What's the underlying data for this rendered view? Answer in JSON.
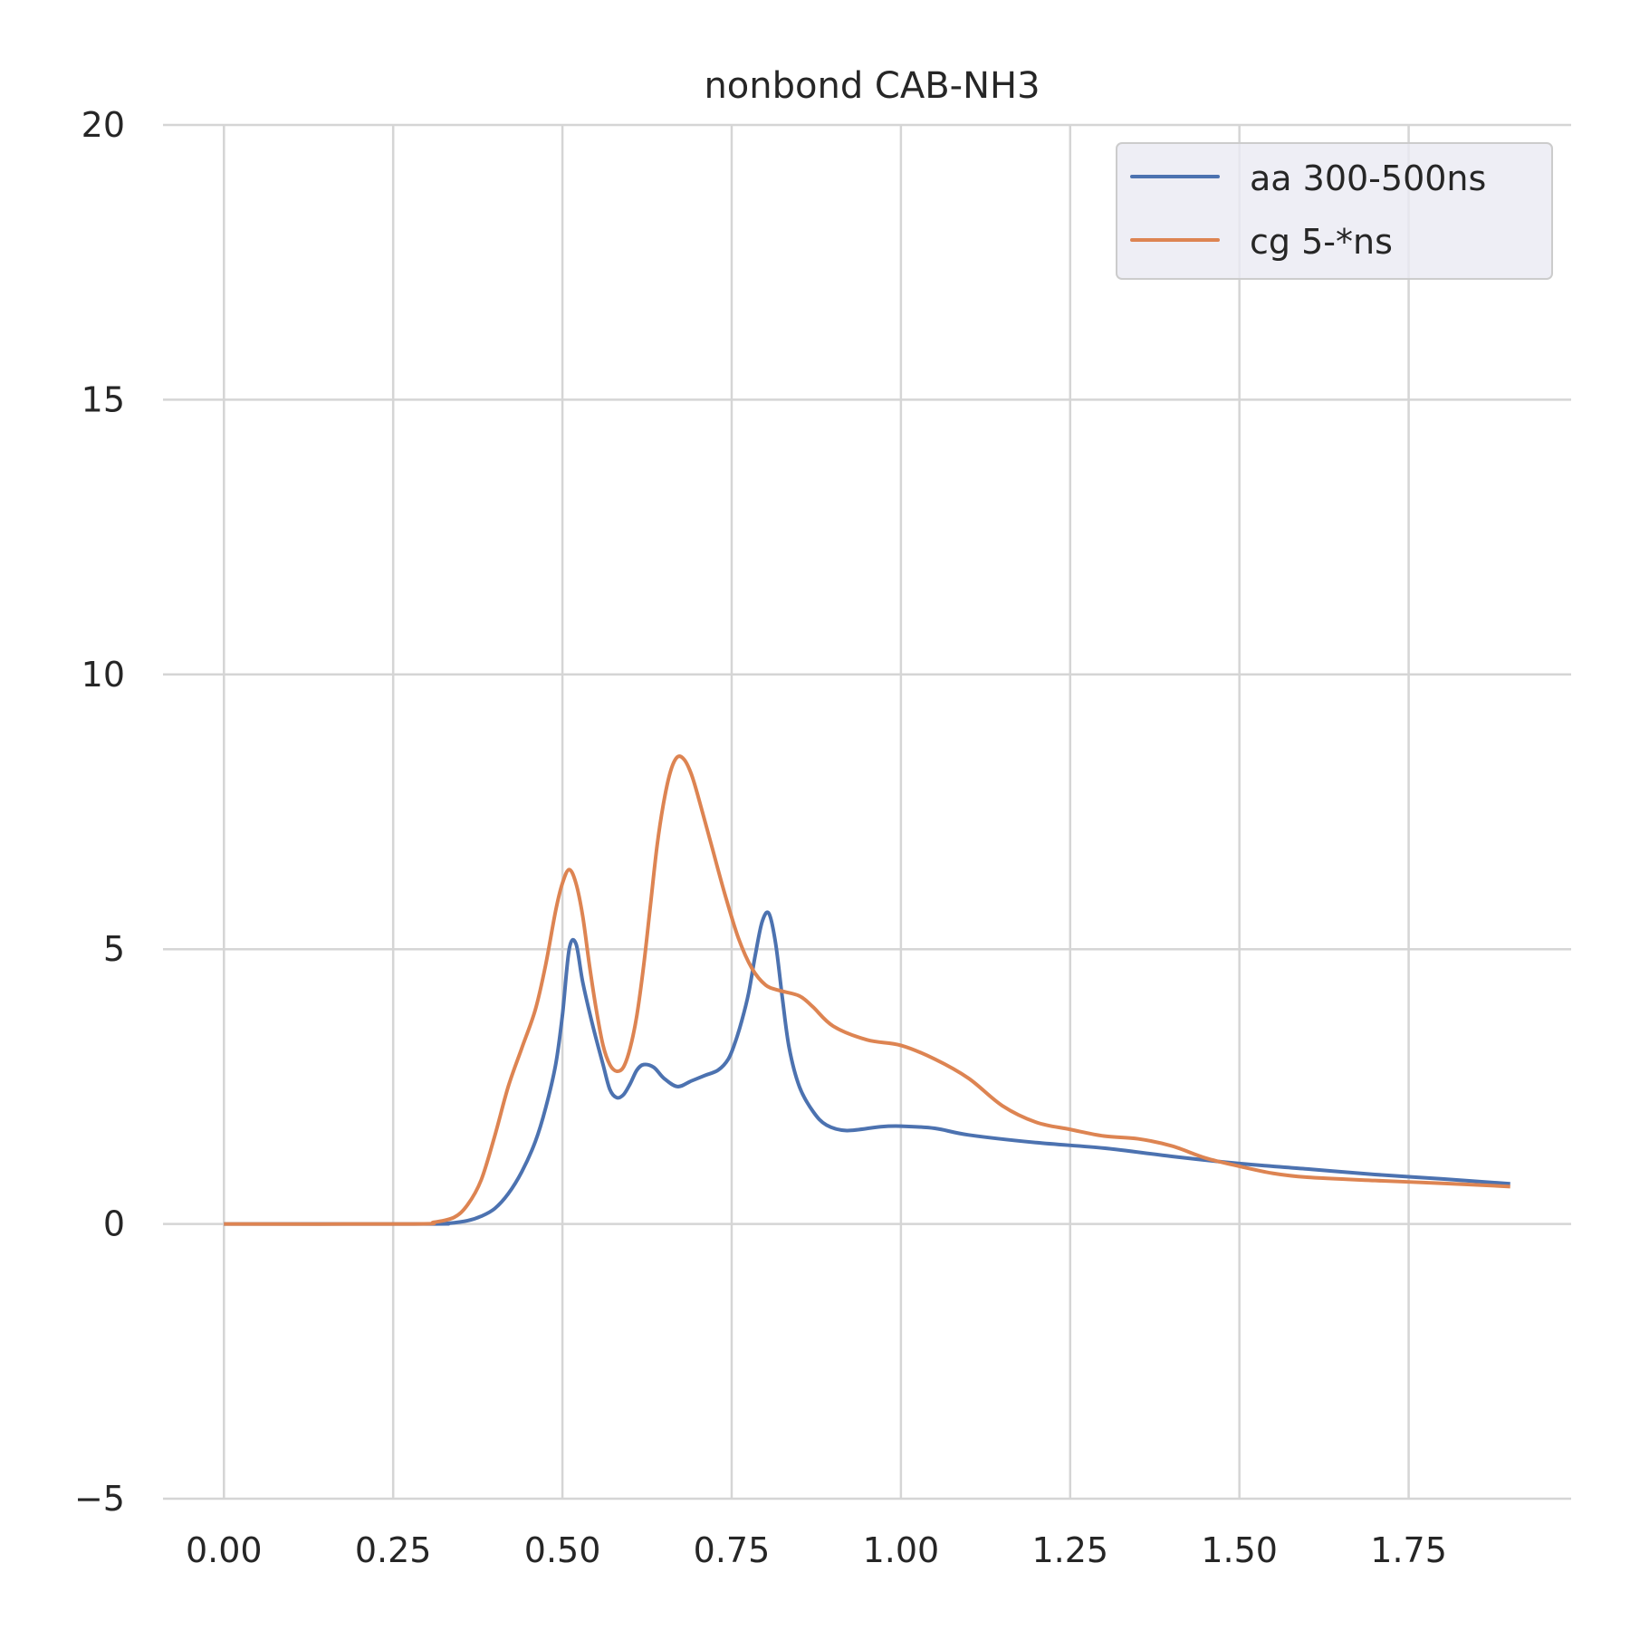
{
  "chart_data": {
    "type": "line",
    "title": "nonbond CAB-NH3",
    "xlabel": "",
    "ylabel": "",
    "xlim": [
      -0.09,
      1.99
    ],
    "ylim": [
      -5,
      20
    ],
    "xticks": [
      0.0,
      0.25,
      0.5,
      0.75,
      1.0,
      1.25,
      1.5,
      1.75
    ],
    "xtick_labels": [
      "0.00",
      "0.25",
      "0.50",
      "0.75",
      "1.00",
      "1.25",
      "1.50",
      "1.75"
    ],
    "yticks": [
      -5,
      0,
      5,
      10,
      15,
      20
    ],
    "ytick_labels": [
      "−5",
      "0",
      "5",
      "10",
      "15",
      "20"
    ],
    "grid": true,
    "legend_position": "top-right",
    "series": [
      {
        "name": "aa 300-500ns",
        "color": "#4c72b0",
        "points": [
          [
            0.0,
            0.0
          ],
          [
            0.3,
            0.0
          ],
          [
            0.33,
            0.01
          ],
          [
            0.36,
            0.06
          ],
          [
            0.38,
            0.14
          ],
          [
            0.4,
            0.28
          ],
          [
            0.42,
            0.55
          ],
          [
            0.44,
            0.95
          ],
          [
            0.46,
            1.5
          ],
          [
            0.475,
            2.1
          ],
          [
            0.49,
            2.9
          ],
          [
            0.5,
            3.8
          ],
          [
            0.51,
            5.0
          ],
          [
            0.52,
            5.1
          ],
          [
            0.53,
            4.4
          ],
          [
            0.545,
            3.6
          ],
          [
            0.56,
            2.9
          ],
          [
            0.57,
            2.45
          ],
          [
            0.58,
            2.3
          ],
          [
            0.59,
            2.35
          ],
          [
            0.6,
            2.55
          ],
          [
            0.61,
            2.8
          ],
          [
            0.62,
            2.9
          ],
          [
            0.635,
            2.85
          ],
          [
            0.65,
            2.65
          ],
          [
            0.67,
            2.5
          ],
          [
            0.69,
            2.6
          ],
          [
            0.71,
            2.7
          ],
          [
            0.73,
            2.8
          ],
          [
            0.745,
            3.0
          ],
          [
            0.755,
            3.3
          ],
          [
            0.765,
            3.7
          ],
          [
            0.775,
            4.2
          ],
          [
            0.785,
            4.9
          ],
          [
            0.795,
            5.5
          ],
          [
            0.805,
            5.65
          ],
          [
            0.815,
            5.1
          ],
          [
            0.825,
            4.1
          ],
          [
            0.835,
            3.2
          ],
          [
            0.85,
            2.5
          ],
          [
            0.87,
            2.05
          ],
          [
            0.89,
            1.8
          ],
          [
            0.92,
            1.7
          ],
          [
            0.97,
            1.77
          ],
          [
            1.0,
            1.78
          ],
          [
            1.05,
            1.74
          ],
          [
            1.1,
            1.62
          ],
          [
            1.2,
            1.48
          ],
          [
            1.3,
            1.38
          ],
          [
            1.4,
            1.23
          ],
          [
            1.5,
            1.1
          ],
          [
            1.6,
            1.0
          ],
          [
            1.7,
            0.9
          ],
          [
            1.8,
            0.82
          ],
          [
            1.9,
            0.73
          ]
        ]
      },
      {
        "name": "cg 5-*ns",
        "color": "#dd8452",
        "points": [
          [
            0.0,
            0.0
          ],
          [
            0.28,
            0.0
          ],
          [
            0.31,
            0.03
          ],
          [
            0.34,
            0.12
          ],
          [
            0.36,
            0.35
          ],
          [
            0.38,
            0.8
          ],
          [
            0.4,
            1.6
          ],
          [
            0.42,
            2.5
          ],
          [
            0.44,
            3.2
          ],
          [
            0.46,
            3.9
          ],
          [
            0.475,
            4.7
          ],
          [
            0.49,
            5.7
          ],
          [
            0.5,
            6.2
          ],
          [
            0.51,
            6.45
          ],
          [
            0.52,
            6.2
          ],
          [
            0.53,
            5.6
          ],
          [
            0.54,
            4.7
          ],
          [
            0.55,
            3.9
          ],
          [
            0.56,
            3.25
          ],
          [
            0.57,
            2.9
          ],
          [
            0.58,
            2.78
          ],
          [
            0.59,
            2.85
          ],
          [
            0.6,
            3.2
          ],
          [
            0.61,
            3.8
          ],
          [
            0.62,
            4.7
          ],
          [
            0.63,
            5.8
          ],
          [
            0.64,
            6.9
          ],
          [
            0.65,
            7.7
          ],
          [
            0.66,
            8.25
          ],
          [
            0.67,
            8.5
          ],
          [
            0.68,
            8.45
          ],
          [
            0.69,
            8.2
          ],
          [
            0.7,
            7.8
          ],
          [
            0.72,
            6.9
          ],
          [
            0.74,
            6.0
          ],
          [
            0.76,
            5.2
          ],
          [
            0.78,
            4.65
          ],
          [
            0.8,
            4.35
          ],
          [
            0.82,
            4.25
          ],
          [
            0.85,
            4.15
          ],
          [
            0.87,
            3.95
          ],
          [
            0.9,
            3.6
          ],
          [
            0.95,
            3.35
          ],
          [
            1.0,
            3.25
          ],
          [
            1.05,
            3.0
          ],
          [
            1.1,
            2.65
          ],
          [
            1.15,
            2.15
          ],
          [
            1.2,
            1.85
          ],
          [
            1.25,
            1.72
          ],
          [
            1.3,
            1.6
          ],
          [
            1.35,
            1.55
          ],
          [
            1.4,
            1.42
          ],
          [
            1.45,
            1.2
          ],
          [
            1.5,
            1.05
          ],
          [
            1.55,
            0.92
          ],
          [
            1.6,
            0.85
          ],
          [
            1.7,
            0.79
          ],
          [
            1.8,
            0.74
          ],
          [
            1.9,
            0.68
          ]
        ]
      }
    ]
  }
}
